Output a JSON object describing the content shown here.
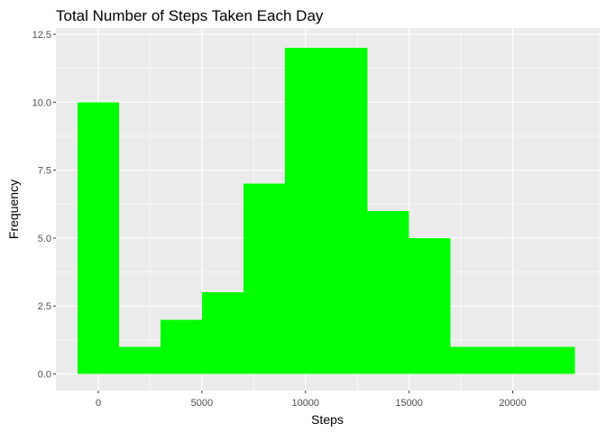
{
  "chart_data": {
    "type": "bar",
    "title": "Total Number of Steps Taken Each Day",
    "xlabel": "Steps",
    "ylabel": "Frequency",
    "bar_color": "#00ff00",
    "panel_background": "#ebebeb",
    "grid_color": "#ffffff",
    "grid": true,
    "xlim": [
      -1000,
      23000
    ],
    "ylim": [
      0,
      12
    ],
    "x_ticks": [
      0,
      5000,
      10000,
      15000,
      20000
    ],
    "y_ticks": [
      0.0,
      2.5,
      5.0,
      7.5,
      10.0,
      12.5
    ],
    "x_tick_labels": [
      "0",
      "5000",
      "10000",
      "15000",
      "20000"
    ],
    "y_tick_labels": [
      "0.0",
      "2.5",
      "5.0",
      "7.5",
      "10.0",
      "12.5"
    ],
    "bins": [
      {
        "start": -1000,
        "end": 1000,
        "count": 10
      },
      {
        "start": 1000,
        "end": 3000,
        "count": 1
      },
      {
        "start": 3000,
        "end": 5000,
        "count": 2
      },
      {
        "start": 5000,
        "end": 7000,
        "count": 3
      },
      {
        "start": 7000,
        "end": 9000,
        "count": 7
      },
      {
        "start": 9000,
        "end": 11000,
        "count": 12
      },
      {
        "start": 11000,
        "end": 13000,
        "count": 12
      },
      {
        "start": 13000,
        "end": 15000,
        "count": 6
      },
      {
        "start": 15000,
        "end": 17000,
        "count": 5
      },
      {
        "start": 17000,
        "end": 19000,
        "count": 1
      },
      {
        "start": 19000,
        "end": 21000,
        "count": 1
      },
      {
        "start": 21000,
        "end": 23000,
        "count": 1
      }
    ]
  }
}
